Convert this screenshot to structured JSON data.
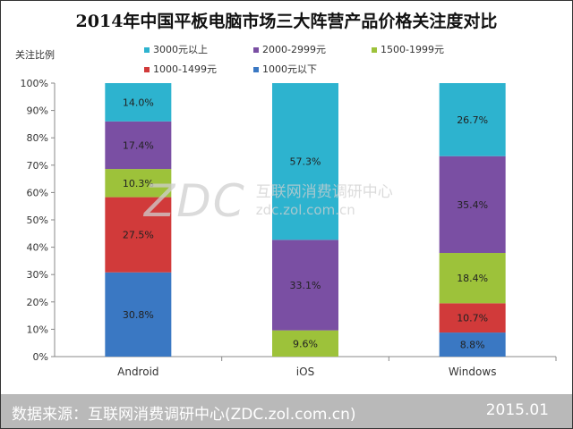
{
  "chart_data": {
    "type": "bar",
    "stacked": true,
    "title": "2014年中国平板电脑市场三大阵营产品价格关注度对比",
    "ylabel": "关注比例",
    "xlabel": "",
    "ylim": [
      0,
      100
    ],
    "y_ticks": [
      "0%",
      "10%",
      "20%",
      "30%",
      "40%",
      "50%",
      "60%",
      "70%",
      "80%",
      "90%",
      "100%"
    ],
    "categories": [
      "Android",
      "iOS",
      "Windows"
    ],
    "legend_position": "top",
    "grid": false,
    "series": [
      {
        "name": "1000元以下",
        "color": "#3a78c3",
        "values": [
          30.8,
          0,
          8.8
        ],
        "labels": [
          "30.8%",
          "",
          "8.8%"
        ]
      },
      {
        "name": "1000-1499元",
        "color": "#d13a3a",
        "values": [
          27.5,
          0,
          10.7
        ],
        "labels": [
          "27.5%",
          "",
          "10.7%"
        ]
      },
      {
        "name": "1500-1999元",
        "color": "#9dc23a",
        "values": [
          10.3,
          9.6,
          18.4
        ],
        "labels": [
          "10.3%",
          "9.6%",
          "18.4%"
        ]
      },
      {
        "name": "2000-2999元",
        "color": "#7a4fa3",
        "values": [
          17.4,
          33.1,
          35.4
        ],
        "labels": [
          "17.4%",
          "33.1%",
          "35.4%"
        ]
      },
      {
        "name": "3000元以上",
        "color": "#2db3cf",
        "values": [
          14.0,
          57.3,
          26.7
        ],
        "labels": [
          "14.0%",
          "57.3%",
          "26.7%"
        ]
      }
    ]
  },
  "legend_rows": [
    [
      "3000元以上",
      "2000-2999元",
      "1500-1999元"
    ],
    [
      "1000-1499元",
      "1000元以下"
    ]
  ],
  "watermark": {
    "logo": "ZDC",
    "cn": "互联网消费调研中心",
    "en": "zdc.zol.com.cn"
  },
  "footer": {
    "source": "数据来源：互联网消费调研中心(ZDC.zol.com.cn)",
    "date": "2015.01"
  }
}
